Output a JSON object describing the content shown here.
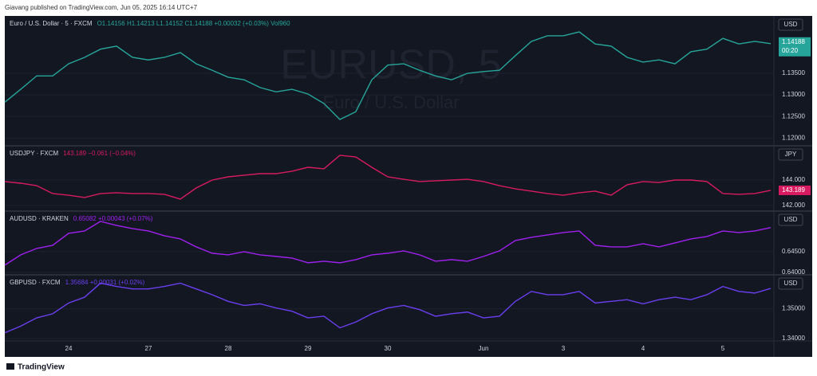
{
  "header": "Giavang published on TradingView.com, Jun 05, 2025 16:14 UTC+7",
  "footer": "TradingView",
  "watermark": [
    "EURUSD, 5",
    "Euro / U.S. Dollar"
  ],
  "chart_data": [
    {
      "type": "line",
      "title": "Euro / U.S. Dollar · 5 · FXCM",
      "subtitle": "O1.14156 H1.14213 L1.14152 C1.14188 +0.00032 (+0.03%) Vol960",
      "currency": "USD",
      "price_label": "1.14188",
      "countdown": "00:20",
      "color": "#26a69a",
      "values": [
        1.1283,
        1.1313,
        1.1344,
        1.1344,
        1.1372,
        1.1387,
        1.1406,
        1.1413,
        1.1387,
        1.1381,
        1.1387,
        1.1398,
        1.1372,
        1.1357,
        1.1341,
        1.1335,
        1.1317,
        1.1307,
        1.1313,
        1.1302,
        1.128,
        1.1243,
        1.1261,
        1.1335,
        1.1369,
        1.1372,
        1.1357,
        1.1344,
        1.1335,
        1.135,
        1.1354,
        1.1357,
        1.1391,
        1.1424,
        1.1437,
        1.1437,
        1.1446,
        1.1418,
        1.1413,
        1.1387,
        1.1376,
        1.1381,
        1.1372,
        1.14,
        1.1406,
        1.1431,
        1.1418,
        1.1424,
        1.14188
      ],
      "ylim": [
        1.1182,
        1.1483
      ],
      "yticks": [
        {
          "value": 1.135,
          "label": "1.13500"
        },
        {
          "value": 1.13,
          "label": "1.13000"
        },
        {
          "value": 1.125,
          "label": "1.12500"
        },
        {
          "value": 1.12,
          "label": "1.12000"
        }
      ]
    },
    {
      "type": "line",
      "title": "USDJPY · FXCM",
      "subtitle": "143.189 −0.061 (−0.04%)",
      "currency": "JPY",
      "color": "#d81b60",
      "values": [
        143.88,
        143.75,
        143.56,
        142.94,
        142.81,
        142.63,
        142.94,
        143.0,
        142.94,
        142.94,
        142.88,
        142.5,
        143.38,
        144.0,
        144.25,
        144.38,
        144.5,
        144.5,
        144.69,
        145.0,
        144.88,
        145.94,
        145.81,
        145.0,
        144.25,
        144.06,
        143.88,
        143.94,
        144.0,
        144.06,
        143.88,
        143.56,
        143.31,
        143.13,
        142.94,
        142.81,
        143.0,
        143.13,
        142.81,
        143.63,
        143.88,
        143.81,
        144.0,
        144.0,
        143.88,
        142.94,
        142.88,
        142.94,
        143.189
      ],
      "ylim": [
        141.56,
        146.69
      ],
      "yticks": [
        {
          "value": 144,
          "label": "144.000"
        },
        {
          "value": 142,
          "label": "142.000"
        }
      ]
    },
    {
      "type": "line",
      "title": "AUDUSD · KRAKEN",
      "subtitle": "0.65082 +0.00043 (+0.07%)",
      "currency": "USD",
      "color": "#a020f0",
      "values": [
        0.64173,
        0.64423,
        0.64577,
        0.64654,
        0.64942,
        0.65,
        0.65231,
        0.65135,
        0.65058,
        0.65,
        0.64885,
        0.64808,
        0.64615,
        0.64462,
        0.64423,
        0.645,
        0.64423,
        0.64385,
        0.64346,
        0.64231,
        0.64269,
        0.64231,
        0.64308,
        0.64423,
        0.64462,
        0.64519,
        0.64423,
        0.64269,
        0.64308,
        0.64269,
        0.64385,
        0.64519,
        0.64769,
        0.64846,
        0.64904,
        0.64962,
        0.65,
        0.64654,
        0.64615,
        0.64615,
        0.64692,
        0.64615,
        0.64712,
        0.64808,
        0.64865,
        0.65,
        0.64962,
        0.65,
        0.65082
      ],
      "ylim": [
        0.6394,
        0.6548
      ],
      "yticks": [
        {
          "value": 0.645,
          "label": "0.64500"
        },
        {
          "value": 0.64,
          "label": "0.64000"
        }
      ]
    },
    {
      "type": "line",
      "title": "GBPUSD · FXCM",
      "subtitle": "1.35684 +0.00031 (+0.02%)",
      "currency": "USD",
      "color": "#6a3ff0",
      "values": [
        1.34194,
        1.34417,
        1.34694,
        1.34833,
        1.35194,
        1.35389,
        1.35861,
        1.3575,
        1.35667,
        1.35667,
        1.3575,
        1.35861,
        1.35667,
        1.35472,
        1.3525,
        1.35111,
        1.35167,
        1.35028,
        1.34917,
        1.34694,
        1.3475,
        1.34361,
        1.34556,
        1.34833,
        1.35028,
        1.35111,
        1.34972,
        1.3475,
        1.34833,
        1.34889,
        1.34694,
        1.3475,
        1.3525,
        1.35583,
        1.35472,
        1.35472,
        1.35583,
        1.35194,
        1.3525,
        1.35306,
        1.35167,
        1.35306,
        1.35389,
        1.35306,
        1.35472,
        1.3575,
        1.35583,
        1.35528,
        1.35684
      ],
      "ylim": [
        1.3392,
        1.3614
      ],
      "yticks": [
        {
          "value": 1.35,
          "label": "1.35000"
        },
        {
          "value": 1.34,
          "label": "1.34000"
        }
      ],
      "categories": [
        null,
        null,
        null,
        null,
        "24",
        null,
        null,
        null,
        null,
        "27",
        null,
        null,
        null,
        null,
        "28",
        null,
        null,
        null,
        null,
        "29",
        null,
        null,
        null,
        null,
        "30",
        null,
        null,
        null,
        null,
        null,
        "Jun",
        null,
        null,
        null,
        null,
        "3",
        null,
        null,
        null,
        null,
        "4",
        null,
        null,
        null,
        null,
        "5",
        null,
        null,
        null
      ]
    }
  ]
}
